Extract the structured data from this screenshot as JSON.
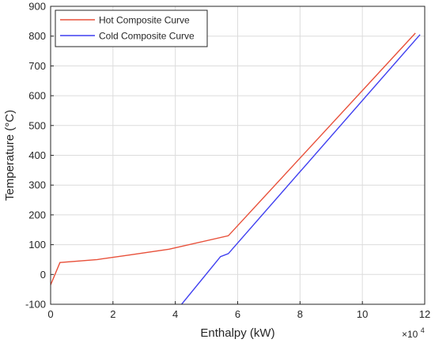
{
  "chart_data": {
    "type": "line",
    "title": "",
    "xlabel": "Enthalpy (kW)",
    "ylabel": "Temperature (°C)",
    "x_multiplier_label": "×10",
    "x_multiplier_exp": "4",
    "xlim": [
      0,
      12
    ],
    "ylim": [
      -100,
      900
    ],
    "x_ticks": [
      0,
      2,
      4,
      6,
      8,
      10,
      12
    ],
    "x_tick_labels": [
      "0",
      "2",
      "4",
      "6",
      "8",
      "10",
      "12"
    ],
    "y_ticks": [
      -100,
      0,
      100,
      200,
      300,
      400,
      500,
      600,
      700,
      800,
      900
    ],
    "y_tick_labels": [
      "-100",
      "0",
      "100",
      "200",
      "300",
      "400",
      "500",
      "600",
      "700",
      "800",
      "900"
    ],
    "grid": true,
    "legend_position": "top-left",
    "series": [
      {
        "name": "Hot Composite Curve",
        "color": "#e8503a",
        "x": [
          0,
          0.3,
          1.5,
          2.5,
          3.8,
          5.7,
          11.7
        ],
        "y": [
          -35,
          40,
          50,
          65,
          85,
          130,
          810
        ]
      },
      {
        "name": "Cold Composite Curve",
        "color": "#3f3ff0",
        "x": [
          4.2,
          5.45,
          5.7,
          11.85
        ],
        "y": [
          -100,
          60,
          70,
          805
        ]
      }
    ]
  }
}
